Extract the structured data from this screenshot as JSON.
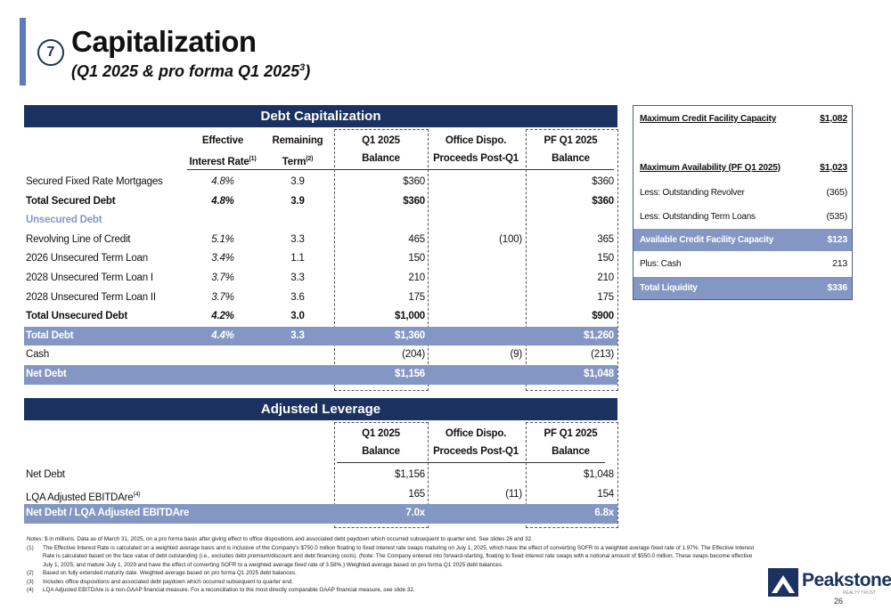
{
  "header": {
    "section_number": "7",
    "title": "Capitalization",
    "subtitle": "(Q1 2025 & pro forma Q1 2025",
    "subtitle_superscript": "3",
    "subtitle_end": ")"
  },
  "debt_table": {
    "title": "Debt Capitalization",
    "columns": [
      {
        "lines": [
          "Effective",
          "Interest Rate"
        ],
        "superscript": "(1)"
      },
      {
        "lines": [
          "Remaining",
          "Term"
        ],
        "superscript": "(2)"
      },
      {
        "lines": [
          "Q1 2025",
          "Balance"
        ]
      },
      {
        "lines": [
          "Office Dispo.",
          "Proceeds Post-Q1"
        ]
      },
      {
        "lines": [
          "PF Q1 2025",
          "Balance"
        ]
      }
    ],
    "rows": [
      {
        "label": "Secured Fixed Rate Mortgages",
        "cells": [
          "4.8%",
          "3.9",
          "$360",
          null,
          "$360"
        ],
        "style": "normal"
      },
      {
        "label": "Total Secured Debt",
        "cells": [
          "4.8%",
          "3.9",
          "$360",
          null,
          "$360"
        ],
        "style": "bold"
      },
      {
        "label": "Unsecured Debt",
        "cells": [
          null,
          null,
          null,
          null,
          null
        ],
        "style": "section"
      },
      {
        "label": "Revolving Line of Credit",
        "cells": [
          "5.1%",
          "3.3",
          "465",
          "(100)",
          "365"
        ],
        "style": "normal"
      },
      {
        "label": "2026 Unsecured Term Loan",
        "cells": [
          "3.4%",
          "1.1",
          "150",
          null,
          "150"
        ],
        "style": "normal"
      },
      {
        "label": "2028 Unsecured Term Loan I",
        "cells": [
          "3.7%",
          "3.3",
          "210",
          null,
          "210"
        ],
        "style": "normal"
      },
      {
        "label": "2028 Unsecured Term Loan II",
        "cells": [
          "3.7%",
          "3.6",
          "175",
          null,
          "175"
        ],
        "style": "normal"
      },
      {
        "label": "Total Unsecured Debt",
        "cells": [
          "4.2%",
          "3.0",
          "$1,000",
          null,
          "$900"
        ],
        "style": "bold"
      },
      {
        "label": "Total Debt",
        "cells": [
          "4.4%",
          "3.3",
          "$1,360",
          null,
          "$1,260"
        ],
        "style": "highlight"
      },
      {
        "label": "Cash",
        "cells": [
          null,
          null,
          "(204)",
          "(9)",
          "(213)"
        ],
        "style": "normal"
      },
      {
        "label": "Net Debt",
        "cells": [
          null,
          null,
          "$1,156",
          null,
          "$1,048"
        ],
        "style": "highlight"
      }
    ]
  },
  "leverage_table": {
    "title": "Adjusted Leverage",
    "columns": [
      {
        "lines": [
          "Q1 2025",
          "Balance"
        ]
      },
      {
        "lines": [
          "Office Dispo.",
          "Proceeds Post-Q1"
        ]
      },
      {
        "lines": [
          "PF Q1 2025",
          "Balance"
        ]
      }
    ],
    "rows": [
      {
        "label": "Net Debt",
        "cells": [
          "$1,156",
          null,
          "$1,048"
        ],
        "style": "normal"
      },
      {
        "label": "LQA Adjusted EBITDAre",
        "superscript": "(4)",
        "cells": [
          "165",
          "(11)",
          "154"
        ],
        "style": "normal"
      },
      {
        "label": "Net Debt / LQA Adjusted EBITDAre",
        "cells": [
          "7.0x",
          null,
          "6.8x"
        ],
        "style": "highlight"
      }
    ]
  },
  "liquidity": {
    "rows": [
      {
        "label": "Maximum Credit Facility Capacity",
        "value": "$1,082",
        "style": "bold"
      },
      {
        "label": "Maximum Availability (PF Q1 2025)",
        "value": "$1,023",
        "style": "bold"
      },
      {
        "label": "Less: Outstanding Revolver",
        "value": "(365)",
        "style": "normal"
      },
      {
        "label": "Less: Outstanding Term Loans",
        "value": "(535)",
        "style": "normal"
      },
      {
        "label": "Available Credit Facility Capacity",
        "value": "$123",
        "style": "highlight"
      },
      {
        "label": "Plus: Cash",
        "value": "213",
        "style": "normal"
      },
      {
        "label": "Total Liquidity",
        "value": "$336",
        "style": "highlight"
      }
    ]
  },
  "notes": {
    "intro": "Notes: $ in millions. Data as of March 31, 2025, on a pro forma basis after giving effect to office dispositions and associated debt paydown which occurred subsequent to quarter end. See slides 26 and 32.",
    "items": [
      {
        "marker": "(1)",
        "text": "The Effective Interest Rate is calculated on a weighted average basis and is inclusive of the Company's $750.0 million floating to fixed interest rate swaps maturing on July 1, 2025, which have the effect of converting SOFR to a weighted average fixed rate of 1.97%. The Effective Interest Rate is calculated based on the face value of debt outstanding (i.e., excludes debt premium/discount and debt financing costs). (Note: The Company entered into forward-starting, floating to fixed interest rate swaps with a notional amount of $550.0 million. These swaps become effective July 1, 2025, and mature July 1, 2029 and have the effect of converting SOFR to a weighted average fixed rate of 3.58%.) Weighted average based on pro forma Q1 2025 debt balances."
      },
      {
        "marker": "(2)",
        "text": "Based on fully extended maturity date. Weighted average based on pro forma Q1 2025 debt balances."
      },
      {
        "marker": "(3)",
        "text": "Includes office dispositions and associated debt paydown which occurred subsequent to quarter end."
      },
      {
        "marker": "(4)",
        "text": "LQA Adjusted EBITDAre is a non-GAAP financial measure. For a reconciliation to the most directly comparable GAAP financial measure, see slide 32."
      }
    ]
  },
  "footer": {
    "logo": "Peakstone",
    "logo_tagline": "REALTY TRUST",
    "page_number": "26"
  }
}
